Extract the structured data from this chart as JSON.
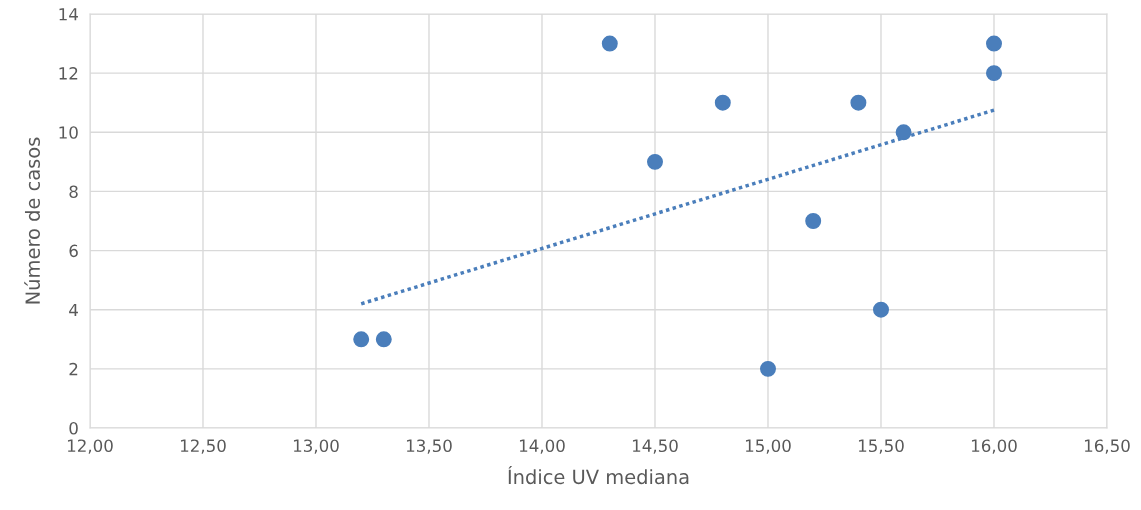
{
  "chart_data": {
    "type": "scatter",
    "xlabel": "Índice UV mediana",
    "ylabel": "Número de casos",
    "series": [
      {
        "color": "#4a7ebb",
        "x": [
          13.2,
          13.3,
          14.3,
          14.5,
          14.8,
          15.0,
          15.2,
          15.4,
          15.5,
          15.6,
          16.0,
          16.0
        ],
        "values": [
          3,
          3,
          13,
          9,
          11,
          2,
          7,
          11,
          4,
          10,
          13,
          12
        ],
        "marker": "circle"
      },
      {
        "type": "line",
        "color": "#4a7ebb",
        "x": [
          13.2,
          16.0
        ],
        "values": [
          4.2,
          10.75
        ],
        "line_style": "dotted",
        "marker": "none"
      }
    ],
    "xlim": [
      12,
      16.5
    ],
    "xticks": [
      {
        "value": 12,
        "label": "12,00"
      },
      {
        "value": 12.5,
        "label": "12,50"
      },
      {
        "value": 13,
        "label": "13,00"
      },
      {
        "value": 13.5,
        "label": "13,50"
      },
      {
        "value": 14,
        "label": "14,00"
      },
      {
        "value": 14.5,
        "label": "14,50"
      },
      {
        "value": 15,
        "label": "15,00"
      },
      {
        "value": 15.5,
        "label": "15,50"
      },
      {
        "value": 16,
        "label": "16,00"
      },
      {
        "value": 16.5,
        "label": "16,50"
      }
    ],
    "ylim": [
      0,
      14
    ],
    "yticks": [
      0,
      2,
      4,
      6,
      8,
      10,
      12,
      14
    ],
    "grid": true,
    "legend": false
  }
}
